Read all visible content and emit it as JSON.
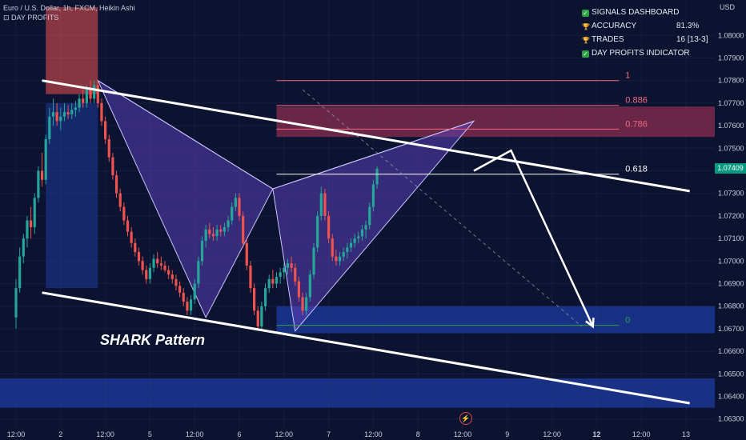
{
  "header": {
    "symbol_line": "Euro / U.S. Dollar, 1h, FXCM, Heikin Ashi",
    "indicator_line": "⊡ DAY PROFITS"
  },
  "dashboard": {
    "title": "SIGNALS DASHBOARD",
    "accuracy_label": "ACCURACY",
    "accuracy_value": "81.3%",
    "trades_label": "TRADES",
    "trades_value": "16 [13-3]",
    "indicator_label": "DAY PROFITS INDICATOR"
  },
  "annotation": {
    "pattern_label": "SHARK Pattern"
  },
  "price_axis": {
    "currency": "USD",
    "current_price_tag": "1.07409"
  },
  "colors": {
    "background": "#0b1330",
    "bull": "#26a69a",
    "bear": "#ef5350",
    "fib_zone": "#7a2a4a",
    "demand_zone": "#1d3a9a",
    "pattern_fill": "#5b3fb5",
    "channel": "#ffffff"
  },
  "chart_data": {
    "type": "candlestick",
    "candle_style": "Heikin Ashi",
    "timeframe": "1h",
    "symbol": "Euro / U.S. Dollar",
    "ylim": [
      1.0626,
      1.0815
    ],
    "y_ticks": [
      "1.08000",
      "1.07900",
      "1.07800",
      "1.07700",
      "1.07600",
      "1.07500",
      "1.07400",
      "1.07300",
      "1.07200",
      "1.07100",
      "1.07000",
      "1.06900",
      "1.06800",
      "1.06700",
      "1.06600",
      "1.06500",
      "1.06400",
      "1.06300"
    ],
    "x_ticks": [
      {
        "label": "12:00",
        "t": 0
      },
      {
        "label": "2",
        "t": 12
      },
      {
        "label": "12:00",
        "t": 24
      },
      {
        "label": "5",
        "t": 36
      },
      {
        "label": "12:00",
        "t": 48
      },
      {
        "label": "6",
        "t": 60
      },
      {
        "label": "12:00",
        "t": 72
      },
      {
        "label": "7",
        "t": 84
      },
      {
        "label": "12:00",
        "t": 96
      },
      {
        "label": "8",
        "t": 108
      },
      {
        "label": "12:00",
        "t": 120
      },
      {
        "label": "9",
        "t": 132
      },
      {
        "label": "12:00",
        "t": 144
      },
      {
        "label": "12",
        "t": 156
      },
      {
        "label": "12:00",
        "t": 168
      },
      {
        "label": "13",
        "t": 180
      }
    ],
    "current_price": 1.07409,
    "fib_levels": [
      {
        "label": "1",
        "price": 1.078
      },
      {
        "label": "0.886",
        "price": 1.0769
      },
      {
        "label": "0.786",
        "price": 1.07585
      },
      {
        "label": "0.618",
        "price": 1.07385
      },
      {
        "label": "0",
        "price": 1.06715
      }
    ],
    "fib_range_t": [
      70,
      162
    ],
    "zones": [
      {
        "kind": "supply",
        "t": [
          8,
          22
        ],
        "price": [
          1.0774,
          1.08125
        ]
      },
      {
        "kind": "fib-prz",
        "t": [
          70,
          200
        ],
        "price": [
          1.0755,
          1.07685
        ]
      },
      {
        "kind": "demand",
        "t": [
          8,
          22
        ],
        "price": [
          1.0688,
          1.077
        ]
      },
      {
        "kind": "demand",
        "t": [
          70,
          200
        ],
        "price": [
          1.0668,
          1.068
        ]
      },
      {
        "kind": "demand",
        "t": [
          -5,
          200
        ],
        "price": [
          1.0635,
          1.0648
        ]
      }
    ],
    "channel": [
      {
        "t": [
          7,
          181
        ],
        "price": [
          1.078,
          1.0731
        ]
      },
      {
        "t": [
          7,
          181
        ],
        "price": [
          1.0686,
          1.0637
        ]
      }
    ],
    "pattern_points": [
      {
        "t": 22,
        "price": 1.078
      },
      {
        "t": 51,
        "price": 1.0675
      },
      {
        "t": 69,
        "price": 1.0732
      },
      {
        "t": 75,
        "price": 1.0669
      },
      {
        "t": 123,
        "price": 1.0762
      }
    ],
    "projection": [
      {
        "t": 123,
        "price": 1.074
      },
      {
        "t": 133,
        "price": 1.0749
      },
      {
        "t": 155,
        "price": 1.0671
      }
    ],
    "dashed_projection": [
      {
        "t": 77,
        "price": 1.0776
      },
      {
        "t": 152,
        "price": 1.0671
      }
    ],
    "candles": [
      {
        "t": 0,
        "o": 1.0675,
        "h": 1.0692,
        "l": 1.067,
        "c": 1.0688
      },
      {
        "t": 1,
        "o": 1.0688,
        "h": 1.0706,
        "l": 1.0686,
        "c": 1.0702
      },
      {
        "t": 2,
        "o": 1.0702,
        "h": 1.0712,
        "l": 1.0699,
        "c": 1.071
      },
      {
        "t": 3,
        "o": 1.071,
        "h": 1.072,
        "l": 1.0706,
        "c": 1.0718
      },
      {
        "t": 4,
        "o": 1.0718,
        "h": 1.0724,
        "l": 1.071,
        "c": 1.0715
      },
      {
        "t": 5,
        "o": 1.0715,
        "h": 1.073,
        "l": 1.0712,
        "c": 1.0728
      },
      {
        "t": 6,
        "o": 1.0728,
        "h": 1.0742,
        "l": 1.0726,
        "c": 1.074
      },
      {
        "t": 7,
        "o": 1.074,
        "h": 1.0748,
        "l": 1.0733,
        "c": 1.0736
      },
      {
        "t": 8,
        "o": 1.0736,
        "h": 1.0756,
        "l": 1.0734,
        "c": 1.0754
      },
      {
        "t": 9,
        "o": 1.0754,
        "h": 1.0768,
        "l": 1.0752,
        "c": 1.0764
      },
      {
        "t": 10,
        "o": 1.0764,
        "h": 1.0772,
        "l": 1.076,
        "c": 1.0766
      },
      {
        "t": 11,
        "o": 1.0766,
        "h": 1.077,
        "l": 1.076,
        "c": 1.0762
      },
      {
        "t": 12,
        "o": 1.0762,
        "h": 1.0768,
        "l": 1.0758,
        "c": 1.0764
      },
      {
        "t": 13,
        "o": 1.0764,
        "h": 1.077,
        "l": 1.0762,
        "c": 1.0766
      },
      {
        "t": 14,
        "o": 1.0766,
        "h": 1.0769,
        "l": 1.0763,
        "c": 1.0765
      },
      {
        "t": 15,
        "o": 1.0765,
        "h": 1.077,
        "l": 1.0763,
        "c": 1.0767
      },
      {
        "t": 16,
        "o": 1.0767,
        "h": 1.0771,
        "l": 1.0764,
        "c": 1.0768
      },
      {
        "t": 17,
        "o": 1.0768,
        "h": 1.0774,
        "l": 1.0766,
        "c": 1.0772
      },
      {
        "t": 18,
        "o": 1.0772,
        "h": 1.0776,
        "l": 1.0768,
        "c": 1.077
      },
      {
        "t": 19,
        "o": 1.077,
        "h": 1.0778,
        "l": 1.0768,
        "c": 1.0776
      },
      {
        "t": 20,
        "o": 1.0776,
        "h": 1.078,
        "l": 1.077,
        "c": 1.0772
      },
      {
        "t": 21,
        "o": 1.0772,
        "h": 1.078,
        "l": 1.077,
        "c": 1.0778
      },
      {
        "t": 22,
        "o": 1.0778,
        "h": 1.078,
        "l": 1.0768,
        "c": 1.077
      },
      {
        "t": 23,
        "o": 1.077,
        "h": 1.0772,
        "l": 1.076,
        "c": 1.0762
      },
      {
        "t": 24,
        "o": 1.0762,
        "h": 1.0764,
        "l": 1.0752,
        "c": 1.0754
      },
      {
        "t": 25,
        "o": 1.0754,
        "h": 1.0756,
        "l": 1.0744,
        "c": 1.0746
      },
      {
        "t": 26,
        "o": 1.0746,
        "h": 1.0748,
        "l": 1.0736,
        "c": 1.0738
      },
      {
        "t": 27,
        "o": 1.0738,
        "h": 1.074,
        "l": 1.0728,
        "c": 1.073
      },
      {
        "t": 28,
        "o": 1.073,
        "h": 1.0732,
        "l": 1.0722,
        "c": 1.0724
      },
      {
        "t": 29,
        "o": 1.0724,
        "h": 1.0726,
        "l": 1.0716,
        "c": 1.0718
      },
      {
        "t": 30,
        "o": 1.0718,
        "h": 1.072,
        "l": 1.0711,
        "c": 1.0713
      },
      {
        "t": 31,
        "o": 1.0713,
        "h": 1.0715,
        "l": 1.0706,
        "c": 1.0708
      },
      {
        "t": 32,
        "o": 1.0708,
        "h": 1.071,
        "l": 1.0702,
        "c": 1.0704
      },
      {
        "t": 33,
        "o": 1.0704,
        "h": 1.0706,
        "l": 1.0698,
        "c": 1.07
      },
      {
        "t": 34,
        "o": 1.07,
        "h": 1.0702,
        "l": 1.0694,
        "c": 1.0696
      },
      {
        "t": 35,
        "o": 1.0696,
        "h": 1.0698,
        "l": 1.069,
        "c": 1.0692
      },
      {
        "t": 36,
        "o": 1.0692,
        "h": 1.0699,
        "l": 1.069,
        "c": 1.0697
      },
      {
        "t": 37,
        "o": 1.0697,
        "h": 1.0703,
        "l": 1.0695,
        "c": 1.0701
      },
      {
        "t": 38,
        "o": 1.0701,
        "h": 1.0704,
        "l": 1.0697,
        "c": 1.0699
      },
      {
        "t": 39,
        "o": 1.0699,
        "h": 1.0702,
        "l": 1.0696,
        "c": 1.0698
      },
      {
        "t": 40,
        "o": 1.0698,
        "h": 1.07,
        "l": 1.0695,
        "c": 1.0696
      },
      {
        "t": 41,
        "o": 1.0696,
        "h": 1.0698,
        "l": 1.0692,
        "c": 1.0694
      },
      {
        "t": 42,
        "o": 1.0694,
        "h": 1.0696,
        "l": 1.069,
        "c": 1.0692
      },
      {
        "t": 43,
        "o": 1.0692,
        "h": 1.0694,
        "l": 1.0687,
        "c": 1.0689
      },
      {
        "t": 44,
        "o": 1.0689,
        "h": 1.0691,
        "l": 1.0684,
        "c": 1.0686
      },
      {
        "t": 45,
        "o": 1.0686,
        "h": 1.0688,
        "l": 1.068,
        "c": 1.0682
      },
      {
        "t": 46,
        "o": 1.0682,
        "h": 1.0684,
        "l": 1.0676,
        "c": 1.0678
      },
      {
        "t": 47,
        "o": 1.0678,
        "h": 1.0685,
        "l": 1.0676,
        "c": 1.0683
      },
      {
        "t": 48,
        "o": 1.0683,
        "h": 1.0692,
        "l": 1.0681,
        "c": 1.069
      },
      {
        "t": 49,
        "o": 1.069,
        "h": 1.0702,
        "l": 1.0688,
        "c": 1.07
      },
      {
        "t": 50,
        "o": 1.07,
        "h": 1.0711,
        "l": 1.0698,
        "c": 1.0709
      },
      {
        "t": 51,
        "o": 1.0709,
        "h": 1.0716,
        "l": 1.0706,
        "c": 1.0714
      },
      {
        "t": 52,
        "o": 1.0714,
        "h": 1.0717,
        "l": 1.071,
        "c": 1.0712
      },
      {
        "t": 53,
        "o": 1.0712,
        "h": 1.0715,
        "l": 1.0709,
        "c": 1.0711
      },
      {
        "t": 54,
        "o": 1.0711,
        "h": 1.0716,
        "l": 1.0709,
        "c": 1.0714
      },
      {
        "t": 55,
        "o": 1.0714,
        "h": 1.0716,
        "l": 1.0711,
        "c": 1.0713
      },
      {
        "t": 56,
        "o": 1.0713,
        "h": 1.0717,
        "l": 1.0711,
        "c": 1.0715
      },
      {
        "t": 57,
        "o": 1.0715,
        "h": 1.072,
        "l": 1.0713,
        "c": 1.0718
      },
      {
        "t": 58,
        "o": 1.0718,
        "h": 1.0726,
        "l": 1.0716,
        "c": 1.0724
      },
      {
        "t": 59,
        "o": 1.0724,
        "h": 1.073,
        "l": 1.0722,
        "c": 1.0728
      },
      {
        "t": 60,
        "o": 1.0728,
        "h": 1.073,
        "l": 1.0718,
        "c": 1.072
      },
      {
        "t": 61,
        "o": 1.072,
        "h": 1.0722,
        "l": 1.0706,
        "c": 1.0708
      },
      {
        "t": 62,
        "o": 1.0708,
        "h": 1.071,
        "l": 1.0696,
        "c": 1.0698
      },
      {
        "t": 63,
        "o": 1.0698,
        "h": 1.07,
        "l": 1.0686,
        "c": 1.0688
      },
      {
        "t": 64,
        "o": 1.0688,
        "h": 1.069,
        "l": 1.0676,
        "c": 1.0678
      },
      {
        "t": 65,
        "o": 1.0678,
        "h": 1.068,
        "l": 1.0669,
        "c": 1.0671
      },
      {
        "t": 66,
        "o": 1.0671,
        "h": 1.0682,
        "l": 1.0669,
        "c": 1.068
      },
      {
        "t": 67,
        "o": 1.068,
        "h": 1.069,
        "l": 1.0678,
        "c": 1.0688
      },
      {
        "t": 68,
        "o": 1.0688,
        "h": 1.0694,
        "l": 1.0686,
        "c": 1.0692
      },
      {
        "t": 69,
        "o": 1.0692,
        "h": 1.0696,
        "l": 1.0688,
        "c": 1.069
      },
      {
        "t": 70,
        "o": 1.069,
        "h": 1.0695,
        "l": 1.0688,
        "c": 1.0693
      },
      {
        "t": 71,
        "o": 1.0693,
        "h": 1.0697,
        "l": 1.069,
        "c": 1.0695
      },
      {
        "t": 72,
        "o": 1.0695,
        "h": 1.0699,
        "l": 1.0692,
        "c": 1.0697
      },
      {
        "t": 73,
        "o": 1.0697,
        "h": 1.0701,
        "l": 1.0694,
        "c": 1.0699
      },
      {
        "t": 74,
        "o": 1.0699,
        "h": 1.0702,
        "l": 1.0695,
        "c": 1.0697
      },
      {
        "t": 75,
        "o": 1.0697,
        "h": 1.0699,
        "l": 1.0689,
        "c": 1.0691
      },
      {
        "t": 76,
        "o": 1.0691,
        "h": 1.0693,
        "l": 1.0682,
        "c": 1.0684
      },
      {
        "t": 77,
        "o": 1.0684,
        "h": 1.0686,
        "l": 1.0676,
        "c": 1.0678
      },
      {
        "t": 78,
        "o": 1.0678,
        "h": 1.0686,
        "l": 1.0676,
        "c": 1.0684
      },
      {
        "t": 79,
        "o": 1.0684,
        "h": 1.0696,
        "l": 1.0682,
        "c": 1.0694
      },
      {
        "t": 80,
        "o": 1.0694,
        "h": 1.0708,
        "l": 1.0692,
        "c": 1.0706
      },
      {
        "t": 81,
        "o": 1.0706,
        "h": 1.0722,
        "l": 1.0704,
        "c": 1.072
      },
      {
        "t": 82,
        "o": 1.072,
        "h": 1.0733,
        "l": 1.0718,
        "c": 1.073
      },
      {
        "t": 83,
        "o": 1.073,
        "h": 1.0732,
        "l": 1.0718,
        "c": 1.072
      },
      {
        "t": 84,
        "o": 1.072,
        "h": 1.0722,
        "l": 1.0708,
        "c": 1.071
      },
      {
        "t": 85,
        "o": 1.071,
        "h": 1.0712,
        "l": 1.07,
        "c": 1.0702
      },
      {
        "t": 86,
        "o": 1.0702,
        "h": 1.0705,
        "l": 1.0698,
        "c": 1.07
      },
      {
        "t": 87,
        "o": 1.07,
        "h": 1.0704,
        "l": 1.0698,
        "c": 1.0702
      },
      {
        "t": 88,
        "o": 1.0702,
        "h": 1.0706,
        "l": 1.07,
        "c": 1.0704
      },
      {
        "t": 89,
        "o": 1.0704,
        "h": 1.0708,
        "l": 1.0701,
        "c": 1.0706
      },
      {
        "t": 90,
        "o": 1.0706,
        "h": 1.071,
        "l": 1.0704,
        "c": 1.0708
      },
      {
        "t": 91,
        "o": 1.0708,
        "h": 1.0712,
        "l": 1.0706,
        "c": 1.071
      },
      {
        "t": 92,
        "o": 1.071,
        "h": 1.0713,
        "l": 1.0708,
        "c": 1.0711
      },
      {
        "t": 93,
        "o": 1.0711,
        "h": 1.0716,
        "l": 1.0709,
        "c": 1.0714
      },
      {
        "t": 94,
        "o": 1.0714,
        "h": 1.0718,
        "l": 1.071,
        "c": 1.0716
      },
      {
        "t": 95,
        "o": 1.0716,
        "h": 1.0726,
        "l": 1.0714,
        "c": 1.0724
      },
      {
        "t": 96,
        "o": 1.0724,
        "h": 1.0736,
        "l": 1.0722,
        "c": 1.0734
      },
      {
        "t": 97,
        "o": 1.0734,
        "h": 1.0742,
        "l": 1.0732,
        "c": 1.07409
      }
    ]
  }
}
